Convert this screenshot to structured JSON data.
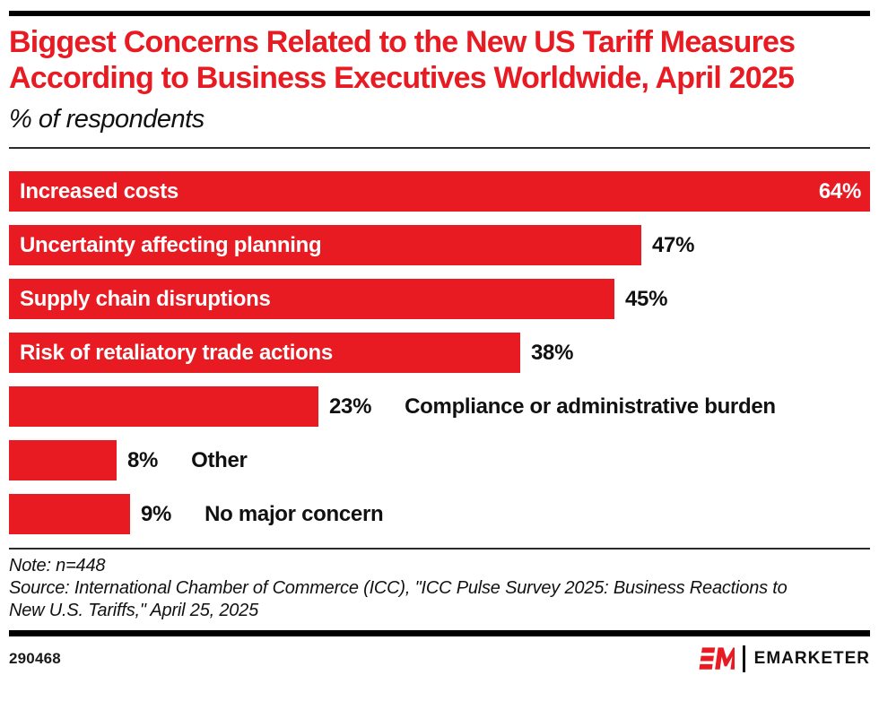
{
  "page": {
    "accent_red": "#e81b23",
    "text_color": "#111111",
    "rule_color": "#000000"
  },
  "header": {
    "title": "Biggest Concerns Related to the New US Tariff Measures According to Business Executives Worldwide, April 2025",
    "subtitle": "% of respondents"
  },
  "chart_data": {
    "type": "bar",
    "orientation": "horizontal",
    "title": "Biggest Concerns Related to the New US Tariff Measures According to Business Executives Worldwide, April 2025",
    "subtitle": "% of respondents",
    "categories": [
      "Increased costs",
      "Uncertainty affecting planning",
      "Supply chain disruptions",
      "Risk of retaliatory trade actions",
      "Compliance or administrative burden",
      "Other",
      "No major concern"
    ],
    "values": [
      64,
      47,
      45,
      38,
      23,
      8,
      9
    ],
    "value_suffix": "%",
    "xlim": [
      0,
      64
    ],
    "max_value": 64,
    "grid": false,
    "legend": false,
    "bar_color": "#e81b23",
    "bars": [
      {
        "label": "Increased costs",
        "value": 64,
        "display_value": "64%",
        "label_position": "inside",
        "value_position": "inside"
      },
      {
        "label": "Uncertainty affecting planning",
        "value": 47,
        "display_value": "47%",
        "label_position": "inside",
        "value_position": "outside"
      },
      {
        "label": "Supply chain disruptions",
        "value": 45,
        "display_value": "45%",
        "label_position": "inside",
        "value_position": "outside"
      },
      {
        "label": "Risk of retaliatory trade actions",
        "value": 38,
        "display_value": "38%",
        "label_position": "inside",
        "value_position": "outside"
      },
      {
        "label": "Compliance or administrative burden",
        "value": 23,
        "display_value": "23%",
        "label_position": "outside",
        "value_position": "outside"
      },
      {
        "label": "Other",
        "value": 8,
        "display_value": "8%",
        "label_position": "outside",
        "value_position": "outside"
      },
      {
        "label": "No major concern",
        "value": 9,
        "display_value": "9%",
        "label_position": "outside",
        "value_position": "outside"
      }
    ]
  },
  "footnote": {
    "note": "Note: n=448",
    "source": "Source: International Chamber of Commerce (ICC), \"ICC Pulse Survey 2025: Business Reactions to New U.S. Tariffs,\" April 25, 2025"
  },
  "footer": {
    "chart_id": "290468",
    "brand": "EMARKETER",
    "logo_monogram": "EM"
  }
}
